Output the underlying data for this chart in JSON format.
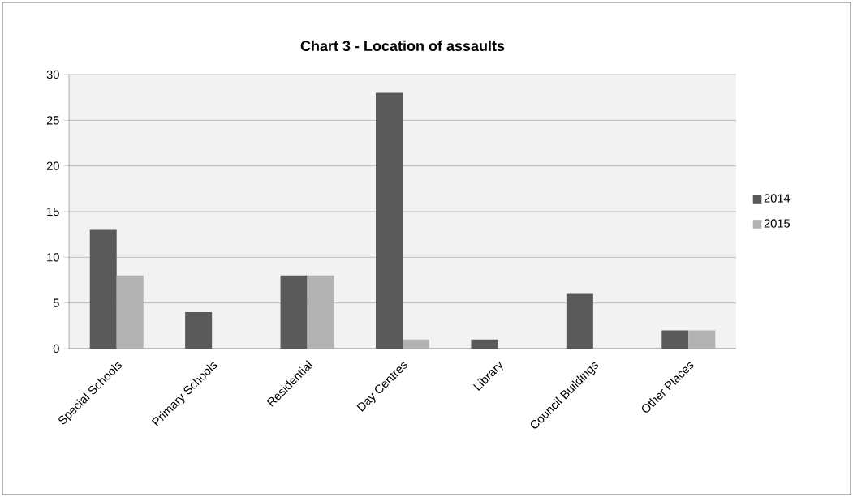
{
  "chart_data": {
    "type": "bar",
    "title": "Chart 3 - Location of assaults",
    "categories": [
      "Special Schools",
      "Primary Schools",
      "Residential",
      "Day Centres",
      "Library",
      "Council Buildings",
      "Other Places"
    ],
    "series": [
      {
        "name": "2014",
        "color": "#595959",
        "values": [
          13,
          4,
          8,
          28,
          1,
          6,
          2
        ]
      },
      {
        "name": "2015",
        "color": "#b2b2b2",
        "values": [
          8,
          0,
          8,
          1,
          0,
          0,
          2
        ]
      }
    ],
    "ylim": [
      0,
      30
    ],
    "yticks": [
      0,
      5,
      10,
      15,
      20,
      25,
      30
    ],
    "grid": "y",
    "legend": "right"
  }
}
